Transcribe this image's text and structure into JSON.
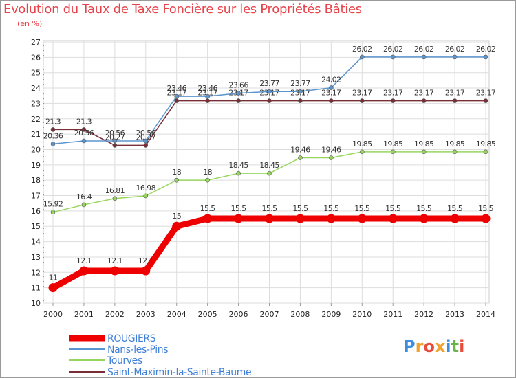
{
  "header": {
    "title": "Evolution du Taux de Taxe Foncière sur les Propriétés Bâties",
    "unit": "(en %)"
  },
  "logo": {
    "letters": [
      "P",
      "r",
      "o",
      "x",
      "i",
      "t",
      "i"
    ],
    "colors": [
      "#3d8ee0",
      "#f2a22e",
      "#e84c3d",
      "#f2a22e",
      "#3d8ee0",
      "#6ab34a",
      "#e84c3d"
    ]
  },
  "chart_data": {
    "type": "line",
    "categories": [
      "2000",
      "2001",
      "2002",
      "2003",
      "2004",
      "2005",
      "2006",
      "2007",
      "2008",
      "2009",
      "2010",
      "2011",
      "2012",
      "2013",
      "2014"
    ],
    "ylim": [
      10,
      27
    ],
    "yticks": [
      10,
      11,
      12,
      13,
      14,
      15,
      16,
      17,
      18,
      19,
      20,
      21,
      22,
      23,
      24,
      25,
      26,
      27
    ],
    "grid": true,
    "legend_position": "bottom-left",
    "series": [
      {
        "name": "Saint-Maximin-la-Sainte-Baume",
        "color": "#7a2e36",
        "values": [
          21.3,
          21.3,
          20.27,
          20.27,
          23.17,
          23.17,
          23.17,
          23.17,
          23.17,
          23.17,
          23.17,
          23.17,
          23.17,
          23.17,
          23.17
        ],
        "labels": [
          "21.3",
          "21.3",
          "20.27",
          "20.27",
          "23.17",
          "23.17",
          "23.17",
          "23.17",
          "23.17",
          "23.17",
          "23.17",
          "23.17",
          "23.17",
          "23.17",
          "23.17"
        ]
      },
      {
        "name": "Nans-les-Pins",
        "color": "#5b95cf",
        "values": [
          20.36,
          20.56,
          20.56,
          20.56,
          23.46,
          23.46,
          23.66,
          23.77,
          23.77,
          24.02,
          26.02,
          26.02,
          26.02,
          26.02,
          26.02
        ],
        "labels": [
          "20.36",
          "20.56",
          "20.56",
          "20.56",
          "23.46",
          "23.46",
          "23.66",
          "23.77",
          "23.77",
          "24.02",
          "26.02",
          "26.02",
          "26.02",
          "26.02",
          "26.02"
        ]
      },
      {
        "name": "Tourves",
        "color": "#97d65e",
        "values": [
          15.92,
          16.4,
          16.81,
          16.98,
          18,
          18,
          18.45,
          18.45,
          19.46,
          19.46,
          19.85,
          19.85,
          19.85,
          19.85,
          19.85
        ],
        "labels": [
          "15.92",
          "16.4",
          "16.81",
          "16.98",
          "18",
          "18",
          "18.45",
          "18.45",
          "19.46",
          "19.46",
          "19.85",
          "19.85",
          "19.85",
          "19.85",
          "19.85"
        ]
      },
      {
        "name": "ROUGIERS",
        "color": "#ee0000",
        "values": [
          11,
          12.1,
          12.1,
          12.1,
          15,
          15.5,
          15.5,
          15.5,
          15.5,
          15.5,
          15.5,
          15.5,
          15.5,
          15.5,
          15.5
        ],
        "labels": [
          "11",
          "12.1",
          "12.1",
          "12.1",
          "15",
          "15.5",
          "15.5",
          "15.5",
          "15.5",
          "15.5",
          "15.5",
          "15.5",
          "15.5",
          "15.5",
          "15.5"
        ]
      }
    ],
    "legend": [
      "ROUGIERS",
      "Nans-les-Pins",
      "Tourves",
      "Saint-Maximin-la-Sainte-Baume"
    ]
  }
}
